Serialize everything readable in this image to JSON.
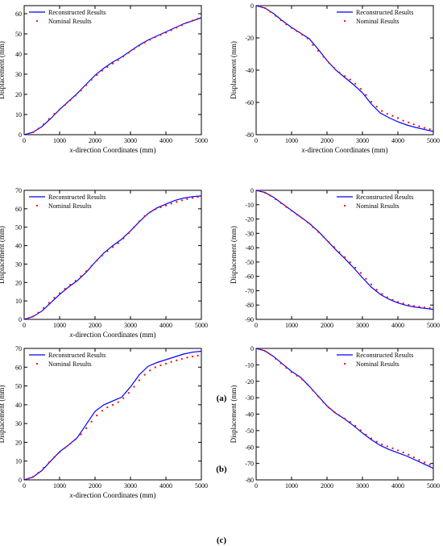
{
  "captions": [
    "(a)",
    "(b)",
    "(c)"
  ],
  "colors": {
    "line": "#0000ff",
    "points": "#ff0000",
    "axis": "#000000"
  },
  "chart_data": [
    {
      "type": "line",
      "xlabel_prefix": "x",
      "xlabel_rest": "-direction Coordinates (mm)",
      "ylabel": "Displacement (mm)",
      "xlim": [
        0,
        5000
      ],
      "ylim": [
        0,
        64
      ],
      "xticks": [
        0,
        1000,
        2000,
        3000,
        4000,
        5000
      ],
      "yticks": [
        0,
        10,
        20,
        30,
        40,
        50,
        60
      ],
      "legend": "top-left",
      "series": [
        {
          "name": "Reconstructed Results",
          "style": "line",
          "x": [
            0,
            250,
            500,
            750,
            1000,
            1250,
            1500,
            1750,
            2000,
            2250,
            2500,
            2750,
            3000,
            3250,
            3500,
            3750,
            4000,
            4250,
            4500,
            4750,
            5000
          ],
          "y": [
            0,
            1.2,
            4,
            8,
            12.5,
            16.5,
            20.5,
            25,
            29.5,
            33,
            36,
            38.5,
            41.5,
            44.5,
            47,
            49,
            51,
            53,
            55,
            56.5,
            58
          ]
        },
        {
          "name": "Nominal Results",
          "style": "points",
          "x": [
            100,
            250,
            400,
            550,
            700,
            850,
            1000,
            1150,
            1300,
            1450,
            1600,
            1750,
            1900,
            2050,
            2200,
            2350,
            2500,
            2650,
            2800,
            2950,
            3100,
            3250,
            3400,
            3550,
            3700,
            3850,
            4000,
            4150,
            4300,
            4450,
            4600,
            4750,
            4900
          ],
          "y": [
            0.3,
            1.2,
            3,
            5.2,
            7.8,
            10.3,
            12.5,
            14.8,
            17.1,
            19.4,
            21.9,
            24.6,
            27.3,
            29.6,
            31.8,
            33.6,
            35.3,
            37,
            38.8,
            40.7,
            42.5,
            44.2,
            45.7,
            47.1,
            48.4,
            49.5,
            50.6,
            51.8,
            53.1,
            54.3,
            55.6,
            56.6,
            57.5
          ]
        }
      ]
    },
    {
      "type": "line",
      "xlabel_prefix": "x",
      "xlabel_rest": "-direction Coordinates (mm)",
      "ylabel": "Displacement (mm)",
      "xlim": [
        0,
        5000
      ],
      "ylim": [
        -80,
        0
      ],
      "xticks": [
        0,
        1000,
        2000,
        3000,
        4000,
        5000
      ],
      "yticks": [
        0,
        -20,
        -40,
        -60,
        -80
      ],
      "legend": "top-right",
      "series": [
        {
          "name": "Reconstructed Results",
          "style": "line",
          "x": [
            0,
            250,
            500,
            750,
            1000,
            1250,
            1500,
            1750,
            2000,
            2250,
            2500,
            2750,
            3000,
            3250,
            3500,
            3750,
            4000,
            4250,
            4500,
            4750,
            5000
          ],
          "y": [
            0,
            -1.5,
            -5,
            -9.5,
            -13.5,
            -17,
            -20.5,
            -27,
            -34,
            -40,
            -44.5,
            -49,
            -54,
            -61,
            -66.5,
            -69.5,
            -72,
            -74,
            -75.5,
            -76.8,
            -78
          ]
        },
        {
          "name": "Nominal Results",
          "style": "points",
          "x": [
            100,
            250,
            400,
            550,
            700,
            850,
            1000,
            1150,
            1300,
            1450,
            1600,
            1750,
            1900,
            2050,
            2200,
            2350,
            2500,
            2650,
            2800,
            2950,
            3100,
            3250,
            3400,
            3550,
            3700,
            3850,
            4000,
            4150,
            4300,
            4450,
            4600,
            4750,
            4900
          ],
          "y": [
            -0.3,
            -1.5,
            -3.8,
            -6.3,
            -9,
            -11.6,
            -13.8,
            -15.9,
            -18,
            -20.3,
            -24.3,
            -28,
            -31.7,
            -35.3,
            -38.6,
            -41.4,
            -43.7,
            -45.8,
            -48.4,
            -51.6,
            -55.3,
            -59.6,
            -62.6,
            -65.3,
            -67.1,
            -68.3,
            -69.7,
            -71.3,
            -72.4,
            -73.6,
            -74.8,
            -75.8,
            -76.6
          ]
        }
      ]
    },
    {
      "type": "line",
      "xlabel_prefix": "x",
      "xlabel_rest": "-direction Coordinates (mm)",
      "ylabel": "Displacement (mm)",
      "xlim": [
        0,
        5000
      ],
      "ylim": [
        0,
        70
      ],
      "xticks": [
        0,
        1000,
        2000,
        3000,
        4000,
        5000
      ],
      "yticks": [
        0,
        10,
        20,
        30,
        40,
        50,
        60,
        70
      ],
      "legend": "top-left",
      "series": [
        {
          "name": "Reconstructed Results",
          "style": "line",
          "x": [
            0,
            250,
            500,
            750,
            1000,
            1250,
            1500,
            1750,
            2000,
            2250,
            2500,
            2750,
            3000,
            3250,
            3500,
            3750,
            4000,
            4250,
            4500,
            4750,
            5000
          ],
          "y": [
            0,
            1.5,
            4.5,
            9,
            13.5,
            17.5,
            21,
            25.5,
            31,
            36,
            40,
            43.5,
            48,
            53,
            57.5,
            60.5,
            62.5,
            64.5,
            65.8,
            66.6,
            67
          ]
        },
        {
          "name": "Nominal Results",
          "style": "points",
          "x": [
            100,
            250,
            400,
            550,
            700,
            850,
            1000,
            1150,
            1300,
            1450,
            1600,
            1750,
            1900,
            2050,
            2200,
            2350,
            2500,
            2650,
            2800,
            2950,
            3100,
            3250,
            3400,
            3550,
            3700,
            3850,
            4000,
            4150,
            4300,
            4450,
            4600,
            4750,
            4900
          ],
          "y": [
            0.4,
            1.6,
            3.7,
            6.2,
            9,
            11.7,
            14.2,
            16.6,
            18.8,
            20.9,
            23.4,
            26.1,
            29,
            31.9,
            34.6,
            37,
            39.2,
            41.3,
            43.9,
            46.8,
            50,
            53.2,
            56,
            58.1,
            59.7,
            60.8,
            61.8,
            62.8,
            63.7,
            64.6,
            65.3,
            65.9,
            66.4
          ]
        }
      ]
    },
    {
      "type": "line",
      "xlabel_prefix": "",
      "xlabel_rest": "",
      "ylabel": "Displacement (mm)",
      "xlim": [
        0,
        5000
      ],
      "ylim": [
        -90,
        0
      ],
      "xticks": [
        0,
        1000,
        2000,
        3000,
        4000,
        5000
      ],
      "yticks": [
        0,
        -10,
        -20,
        -30,
        -40,
        -50,
        -60,
        -70,
        -80,
        -90
      ],
      "legend": "top-right",
      "series": [
        {
          "name": "Reconstructed Results",
          "style": "line",
          "x": [
            0,
            250,
            500,
            750,
            1000,
            1250,
            1500,
            1750,
            2000,
            2250,
            2500,
            2750,
            3000,
            3250,
            3500,
            3750,
            4000,
            4250,
            4500,
            4750,
            5000
          ],
          "y": [
            0,
            -1.5,
            -5,
            -9.5,
            -14,
            -18.5,
            -23,
            -28.5,
            -35,
            -41.5,
            -47.5,
            -54,
            -61,
            -67.5,
            -72.5,
            -76,
            -78.5,
            -80.3,
            -81.5,
            -82.3,
            -83
          ]
        },
        {
          "name": "Nominal Results",
          "style": "points",
          "x": [
            100,
            250,
            400,
            550,
            700,
            850,
            1000,
            1150,
            1300,
            1450,
            1600,
            1750,
            1900,
            2050,
            2200,
            2350,
            2500,
            2650,
            2800,
            2950,
            3100,
            3250,
            3400,
            3550,
            3700,
            3850,
            4000,
            4150,
            4300,
            4450,
            4600,
            4750,
            4900
          ],
          "y": [
            -0.4,
            -1.6,
            -3.6,
            -6.2,
            -8.9,
            -11.6,
            -14.2,
            -16.8,
            -19.5,
            -22.4,
            -25.6,
            -29,
            -32.4,
            -36.1,
            -39.6,
            -43.1,
            -46.6,
            -50.2,
            -53.9,
            -57.6,
            -61.7,
            -65.6,
            -69.3,
            -72.3,
            -74.6,
            -76.4,
            -77.8,
            -78.9,
            -79.9,
            -80.6,
            -81.2,
            -81.7,
            -82.1
          ]
        }
      ]
    },
    {
      "type": "line",
      "xlabel_prefix": "x",
      "xlabel_rest": "-direction Coordinates (mm)",
      "ylabel": "Displacement (mm)",
      "xlim": [
        0,
        5000
      ],
      "ylim": [
        0,
        70
      ],
      "xticks": [
        0,
        1000,
        2000,
        3000,
        4000,
        5000
      ],
      "yticks": [
        0,
        10,
        20,
        30,
        40,
        50,
        60,
        70
      ],
      "legend": "top-left",
      "series": [
        {
          "name": "Reconstructed Results",
          "style": "line",
          "x": [
            0,
            250,
            500,
            750,
            1000,
            1250,
            1500,
            1750,
            2000,
            2250,
            2500,
            2750,
            3000,
            3250,
            3500,
            3750,
            4000,
            4250,
            4500,
            4750,
            5000
          ],
          "y": [
            0,
            1.5,
            5,
            10,
            15,
            18.5,
            22.5,
            29.5,
            36.5,
            40,
            42,
            44,
            49.5,
            56,
            60.5,
            62.5,
            64,
            65.5,
            67,
            68,
            68.5
          ]
        },
        {
          "name": "Nominal Results",
          "style": "points",
          "x": [
            100,
            250,
            400,
            550,
            700,
            850,
            1000,
            1150,
            1300,
            1450,
            1600,
            1750,
            1900,
            2050,
            2200,
            2350,
            2500,
            2650,
            2800,
            2950,
            3100,
            3250,
            3400,
            3550,
            3700,
            3850,
            4000,
            4150,
            4300,
            4450,
            4600,
            4750,
            4900
          ],
          "y": [
            0.4,
            1.6,
            3.8,
            6.4,
            9.3,
            12.1,
            14.6,
            17,
            19.3,
            21.5,
            24.2,
            27.5,
            31,
            34.3,
            36.8,
            38.6,
            39.9,
            41.4,
            43.5,
            46.3,
            49.6,
            53,
            56,
            58.3,
            59.9,
            61,
            61.9,
            62.8,
            63.6,
            64.4,
            65.1,
            65.7,
            66.2
          ]
        }
      ]
    },
    {
      "type": "line",
      "xlabel_prefix": "",
      "xlabel_rest": "",
      "ylabel": "Displacement (mm)",
      "xlim": [
        0,
        5000
      ],
      "ylim": [
        -80,
        0
      ],
      "xticks": [
        0,
        1000,
        2000,
        3000,
        4000,
        5000
      ],
      "yticks": [
        0,
        -10,
        -20,
        -30,
        -40,
        -50,
        -60,
        -70,
        -80
      ],
      "legend": "top-right",
      "series": [
        {
          "name": "Reconstructed Results",
          "style": "line",
          "x": [
            0,
            250,
            500,
            750,
            1000,
            1250,
            1500,
            1750,
            2000,
            2250,
            2500,
            2750,
            3000,
            3250,
            3500,
            3750,
            4000,
            4250,
            4500,
            4750,
            5000
          ],
          "y": [
            0,
            -1.5,
            -5,
            -9.5,
            -14,
            -17.5,
            -23,
            -29,
            -35,
            -39.5,
            -43,
            -47,
            -51.5,
            -55.5,
            -59,
            -61.5,
            -63.5,
            -65.5,
            -68,
            -70.5,
            -73
          ]
        },
        {
          "name": "Nominal Results",
          "style": "points",
          "x": [
            100,
            250,
            400,
            550,
            700,
            850,
            1000,
            1150,
            1300,
            1450,
            1600,
            1750,
            1900,
            2050,
            2200,
            2350,
            2500,
            2650,
            2800,
            2950,
            3100,
            3250,
            3400,
            3550,
            3700,
            3850,
            4000,
            4150,
            4300,
            4450,
            4600,
            4750,
            4900
          ],
          "y": [
            -0.4,
            -1.6,
            -3.7,
            -6.3,
            -9.1,
            -11.8,
            -14.4,
            -16.6,
            -18.9,
            -21.9,
            -25.6,
            -29.2,
            -32.8,
            -36,
            -38.7,
            -40.8,
            -42.7,
            -44.7,
            -47.1,
            -49.8,
            -52.5,
            -54.8,
            -56.8,
            -58.4,
            -59.6,
            -60.8,
            -62,
            -63.3,
            -64.7,
            -66.3,
            -67.9,
            -69.4,
            -70.8
          ]
        }
      ]
    }
  ]
}
